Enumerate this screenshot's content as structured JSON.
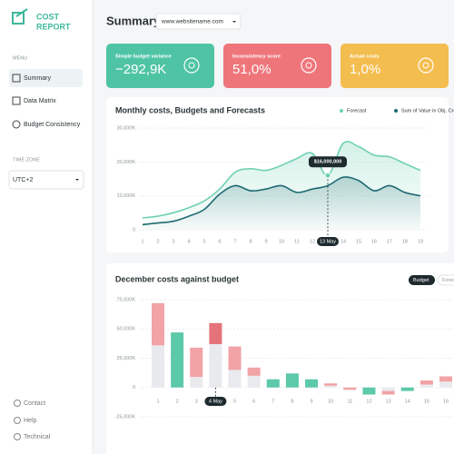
{
  "sidebar": {
    "logo": [
      "COST",
      "REPORT"
    ],
    "menu_label": "MENU",
    "menu": [
      "Summary",
      "Data Matrix",
      "Budget Consistency"
    ],
    "timezone_label": "TIME ZONE",
    "timezone": "UTC+2",
    "footer": [
      "Contact",
      "Help",
      "Technical"
    ]
  },
  "header": {
    "title": "Summary",
    "site": "www.websitename.com"
  },
  "cards": [
    {
      "title": "Simple budget variance",
      "value": "−292,9K",
      "color": "#4fc4a5"
    },
    {
      "title": "Inconsistency score",
      "value": "51,0%",
      "color": "#ee767b"
    },
    {
      "title": "Actual costs",
      "value": "1,0%",
      "color": "#f4bd4f"
    }
  ],
  "chart_data": [
    {
      "type": "line",
      "title": "Monthly costs, Budgets and Forecasts",
      "categories": [
        "1",
        "2",
        "3",
        "4",
        "5",
        "6",
        "7",
        "8",
        "9",
        "10",
        "11",
        "12",
        "13 May",
        "14",
        "15",
        "16",
        "17",
        "18",
        "19"
      ],
      "series": [
        {
          "name": "Forecast",
          "color": "#6fd0b3",
          "values": [
            3500,
            4000,
            5000,
            6500,
            8500,
            12000,
            17000,
            18000,
            17500,
            19000,
            21000,
            22500,
            16000,
            25500,
            24500,
            22000,
            21500,
            19500,
            17500
          ]
        },
        {
          "name": "Sum of Value in Obj. Crcy",
          "color": "#1e6a72",
          "values": [
            1500,
            2000,
            2500,
            4000,
            6000,
            10500,
            13000,
            11500,
            12000,
            13000,
            11000,
            12000,
            13000,
            15500,
            14500,
            11500,
            13000,
            11000,
            10000
          ]
        }
      ],
      "ylim": [
        0,
        30000
      ],
      "yticks": [
        {
          "value": 30000,
          "label": "30,000K"
        },
        {
          "value": 20000,
          "label": "20,000K"
        },
        {
          "value": 10000,
          "label": "10,000K"
        },
        0
      ],
      "highlight": "13 May",
      "annotation": "$16,000,000",
      "grid": true
    },
    {
      "type": "bar",
      "title": "December costs against budget",
      "buttons": [
        "Budget",
        "Forecast"
      ],
      "categories": [
        "1",
        "2",
        "3",
        "4 May",
        "5",
        "6",
        "7",
        "8",
        "9",
        "10",
        "11",
        "12",
        "13",
        "14",
        "15",
        "16"
      ],
      "series": [
        {
          "color": "#e8eaed",
          "values": [
            36000,
            0,
            9000,
            37000,
            15000,
            10000,
            0,
            0,
            0,
            1500,
            0,
            0,
            -3000,
            0,
            2500,
            5000
          ]
        },
        {
          "colors": [
            "#f1a3a6",
            "#5cc9a9",
            "#f1a3a6",
            "#e5737a",
            "#f1a3a6",
            "#f1a3a6",
            "#5cc9a9",
            "#5cc9a9",
            "#5cc9a9",
            "#f1a3a6",
            "#f1a3a6",
            "#5cc9a9",
            "#f1a3a6",
            "#5cc9a9",
            "#f1a3a6",
            "#f1a3a6"
          ],
          "values": [
            36000,
            47000,
            25000,
            18000,
            20000,
            7000,
            7000,
            12000,
            7000,
            2000,
            -2000,
            -6000,
            -3000,
            -3000,
            3500,
            4500
          ]
        }
      ],
      "ylim": [
        -25000,
        75000
      ],
      "yticks": [
        {
          "value": 75000,
          "label": "75,000K"
        },
        {
          "value": 50000,
          "label": "50,000K"
        },
        {
          "value": 25000,
          "label": "25,000K"
        },
        0,
        {
          "value": -25000,
          "label": "-25,000K"
        }
      ],
      "highlight": "4 May",
      "grid": true
    }
  ]
}
